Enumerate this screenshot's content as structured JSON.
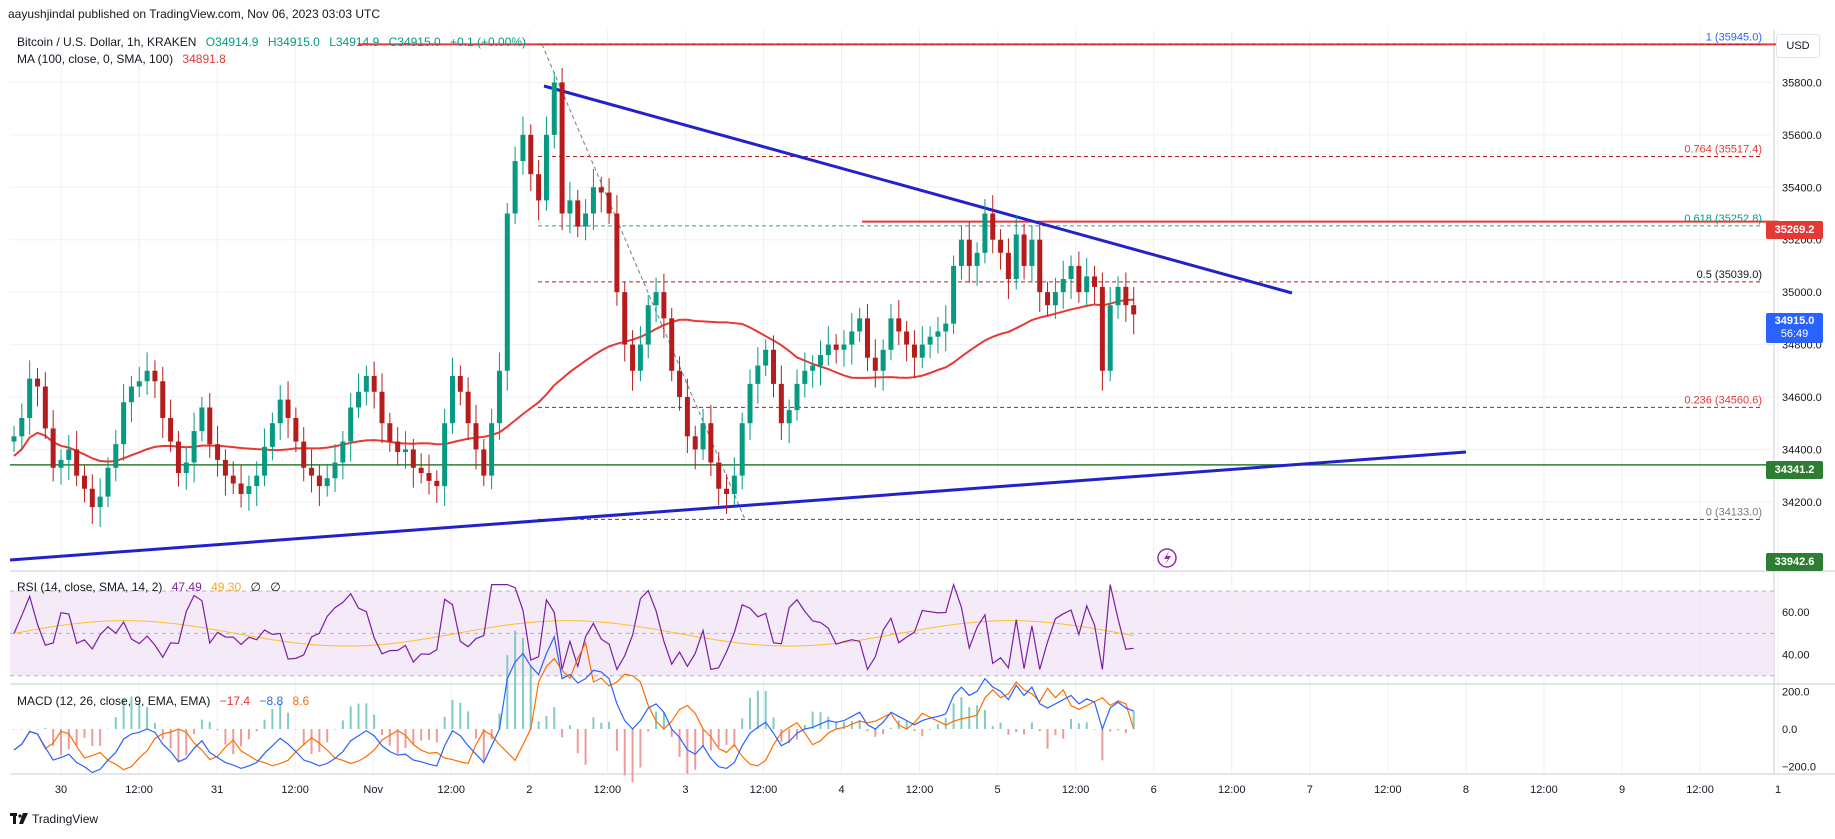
{
  "publisher_line": "aayushjindal published on TradingView.com, Nov 06, 2023 03:03 UTC",
  "symbol": {
    "name": "Bitcoin / U.S. Dollar, 1h, KRAKEN",
    "o": "O34914.9",
    "h": "H34915.0",
    "l": "L34914.9",
    "c": "C34915.0",
    "chg": "+0.1 (+0.00%)"
  },
  "ma": {
    "label": "MA (100, close, 0, SMA, 100)",
    "value": "34891.8"
  },
  "rsi": {
    "label": "RSI (14, close, SMA, 14, 2)",
    "v1": "47.49",
    "v2": "49.30",
    "v3": "∅",
    "v4": "∅"
  },
  "macd": {
    "label": "MACD (12, 26, close, 9, EMA, EMA)",
    "v1": "−17.4",
    "v2": "−8.8",
    "v3": "8.6"
  },
  "currency": "USD",
  "price_tags": {
    "current": "34915.0",
    "countdown": "56:49",
    "resistance": "35269.2",
    "support": "34341.2",
    "other": "33942.6"
  },
  "footer_brand": "TradingView",
  "colors": {
    "up": "#089981",
    "down": "#b71c1c",
    "ma": "#e53935",
    "trend": "#2222cc",
    "hline_red": "#e53935",
    "hline_green": "#2e7d32",
    "rsi": "#7b1fa2",
    "macd": "#2962ff",
    "signal": "#ff6d00"
  },
  "chart_data": {
    "type": "candlestick",
    "title": "Bitcoin / U.S. Dollar, 1h, KRAKEN",
    "x_tick_labels": [
      "30",
      "12:00",
      "31",
      "12:00",
      "Nov",
      "12:00",
      "2",
      "12:00",
      "3",
      "12:00",
      "4",
      "12:00",
      "5",
      "12:00",
      "6",
      "12:00",
      "7",
      "12:00",
      "8",
      "12:00",
      "9",
      "12:00",
      "1"
    ],
    "y_tick_labels": [
      "35800.0",
      "35600.0",
      "35400.0",
      "35200.0",
      "35000.0",
      "34800.0",
      "34600.0",
      "34400.0",
      "34200.0"
    ],
    "ylim": [
      33940,
      36000
    ],
    "close_series": [
      34450,
      34520,
      34670,
      34640,
      34480,
      34330,
      34360,
      34400,
      34300,
      34250,
      34180,
      34220,
      34330,
      34420,
      34580,
      34640,
      34660,
      34700,
      34660,
      34520,
      34430,
      34310,
      34350,
      34470,
      34560,
      34420,
      34360,
      34300,
      34270,
      34230,
      34260,
      34300,
      34410,
      34500,
      34590,
      34520,
      34430,
      34330,
      34300,
      34260,
      34290,
      34350,
      34430,
      34560,
      34620,
      34680,
      34620,
      34500,
      34430,
      34390,
      34400,
      34330,
      34310,
      34280,
      34260,
      34500,
      34680,
      34620,
      34500,
      34400,
      34300,
      34500,
      34700,
      35300,
      35500,
      35600,
      35450,
      35350,
      35600,
      35800,
      35300,
      35350,
      35250,
      35300,
      35400,
      35380,
      35300,
      35000,
      34800,
      34700,
      34800,
      34950,
      35000,
      34900,
      34700,
      34600,
      34450,
      34400,
      34500,
      34350,
      34250,
      34230,
      34300,
      34500,
      34650,
      34720,
      34780,
      34650,
      34500,
      34550,
      34650,
      34700,
      34720,
      34760,
      34800,
      34780,
      34800,
      34850,
      34900,
      34750,
      34700,
      34780,
      34900,
      34850,
      34800,
      34750,
      34800,
      34830,
      34850,
      34880,
      35100,
      35200,
      35100,
      35150,
      35300,
      35200,
      35150,
      35050,
      35220,
      35100,
      35200,
      35000,
      34950,
      35000,
      35050,
      35100,
      35000,
      35060,
      35020,
      34700,
      34950,
      35020,
      34950,
      34915
    ],
    "annotations": {
      "fib_levels": [
        {
          "label": "1 (35945.0)",
          "value": 35945.0
        },
        {
          "label": "0.764 (35517.4)",
          "value": 35517.4
        },
        {
          "label": "0.618 (35252.8)",
          "value": 35252.8
        },
        {
          "label": "0.5 (35039.0)",
          "value": 35039.0
        },
        {
          "label": "0.236 (34560.6)",
          "value": 34560.6
        },
        {
          "label": "0 (34133.0)",
          "value": 34133.0
        }
      ],
      "horizontal_lines": [
        {
          "value": 35945.0,
          "color": "#e53935"
        },
        {
          "value": 35269.2,
          "color": "#e53935"
        },
        {
          "value": 34341.2,
          "color": "#2e7d32"
        }
      ]
    },
    "rsi": {
      "y_tick_labels": [
        "60.00",
        "40.00"
      ]
    },
    "macd": {
      "y_tick_labels": [
        "200.0",
        "0.0",
        "−200.0"
      ]
    }
  }
}
